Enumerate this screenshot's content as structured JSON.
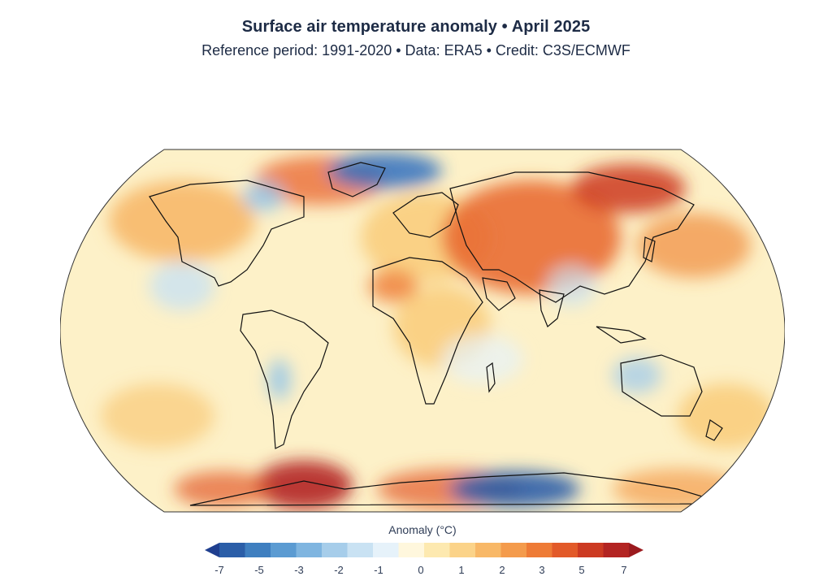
{
  "header": {
    "title": "Surface air temperature anomaly • April 2025",
    "subtitle": "Reference period: 1991-2020 • Data: ERA5 • Credit: C3S/ECMWF"
  },
  "map": {
    "projection": "Robinson",
    "description_colors": {
      "ocean_base": "#fdf1c8",
      "land_outline": "#111111",
      "strong_warm": "#c0281f",
      "warm": "#f08a3a",
      "mild_warm": "#f8c36a",
      "cool": "#8ec3ea",
      "strong_cool": "#2f6fc0"
    }
  },
  "legend": {
    "title": "Anomaly (°C)",
    "tick_labels": [
      "-7",
      "-5",
      "-3",
      "-2",
      "-1",
      "0",
      "1",
      "2",
      "3",
      "5",
      "7"
    ],
    "colors": [
      "#1f3f8f",
      "#2b5ea8",
      "#3f7fc0",
      "#5b9bd2",
      "#7fb5e0",
      "#a6cdea",
      "#c9e2f3",
      "#e6f2fa",
      "#fff7dd",
      "#fde9b0",
      "#fbd389",
      "#f8b867",
      "#f49b4c",
      "#ee7b36",
      "#e25a29",
      "#cc3a22",
      "#b32422",
      "#9b1a1e"
    ]
  }
}
